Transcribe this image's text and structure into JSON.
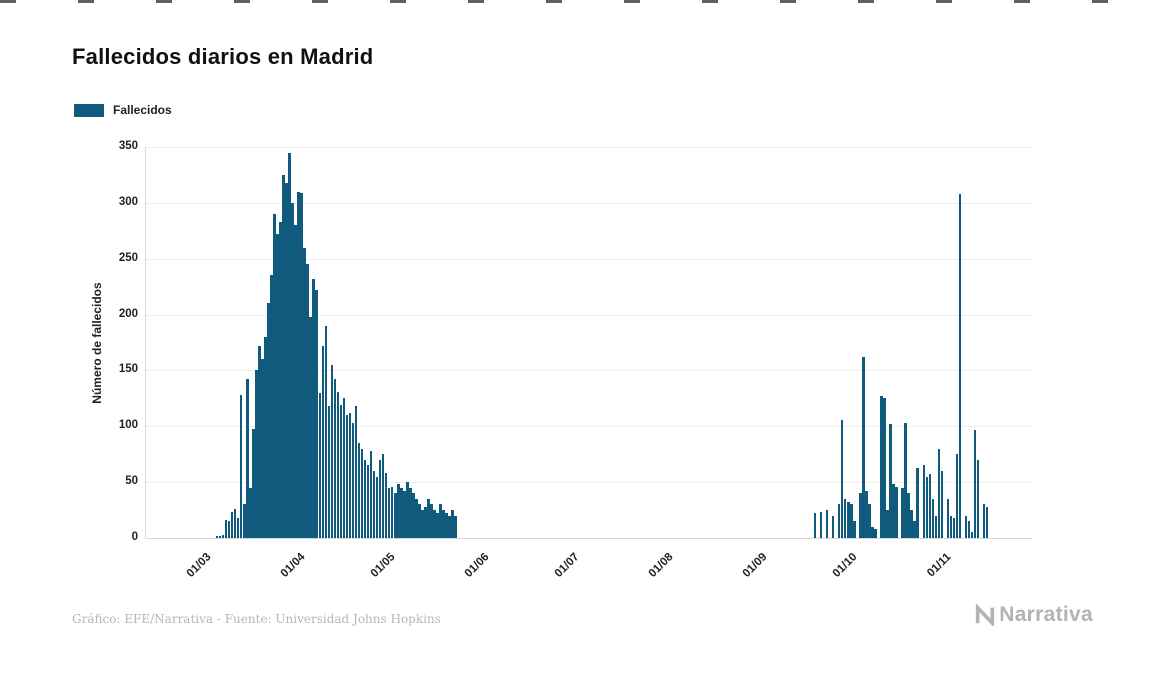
{
  "page": {
    "title": "Fallecidos diarios en Madrid",
    "legend_label": "Fallecidos",
    "ylabel": "Número de fallecidos",
    "footer_credit": "Gráfico: EFE/Narrativa - Fuente: Universidad Johns Hopkins",
    "brand": "Narrativa"
  },
  "colors": {
    "bar": "#0f5a7d",
    "axis": "#d9d9d9",
    "grid": "#efefef",
    "text": "#222222",
    "muted": "#b6b6b6"
  },
  "chart_data": {
    "type": "bar",
    "title": "Fallecidos diarios en Madrid",
    "xlabel": "",
    "ylabel": "Número de fallecidos",
    "ylim": [
      0,
      350
    ],
    "yticks": [
      0,
      50,
      100,
      150,
      200,
      250,
      300,
      350
    ],
    "xticks": [
      "01/03",
      "01/04",
      "01/05",
      "01/06",
      "01/07",
      "01/08",
      "01/09",
      "01/10",
      "01/11"
    ],
    "grid": true,
    "legend_position": "top-left",
    "series": [
      {
        "name": "Fallecidos",
        "points": [
          [
            "05/03",
            2
          ],
          [
            "06/03",
            2
          ],
          [
            "07/03",
            3
          ],
          [
            "08/03",
            16
          ],
          [
            "09/03",
            15
          ],
          [
            "10/03",
            23
          ],
          [
            "11/03",
            26
          ],
          [
            "12/03",
            18
          ],
          [
            "13/03",
            128
          ],
          [
            "14/03",
            30
          ],
          [
            "15/03",
            142
          ],
          [
            "16/03",
            45
          ],
          [
            "17/03",
            98
          ],
          [
            "18/03",
            150
          ],
          [
            "19/03",
            172
          ],
          [
            "20/03",
            160
          ],
          [
            "21/03",
            180
          ],
          [
            "22/03",
            210
          ],
          [
            "23/03",
            235
          ],
          [
            "24/03",
            290
          ],
          [
            "25/03",
            272
          ],
          [
            "26/03",
            283
          ],
          [
            "27/03",
            325
          ],
          [
            "28/03",
            318
          ],
          [
            "29/03",
            345
          ],
          [
            "30/03",
            300
          ],
          [
            "31/03",
            280
          ],
          [
            "01/04",
            310
          ],
          [
            "02/04",
            309
          ],
          [
            "03/04",
            260
          ],
          [
            "04/04",
            245
          ],
          [
            "05/04",
            198
          ],
          [
            "06/04",
            232
          ],
          [
            "07/04",
            222
          ],
          [
            "08/04",
            130
          ],
          [
            "09/04",
            172
          ],
          [
            "10/04",
            190
          ],
          [
            "11/04",
            118
          ],
          [
            "12/04",
            155
          ],
          [
            "13/04",
            142
          ],
          [
            "14/04",
            131
          ],
          [
            "15/04",
            119
          ],
          [
            "16/04",
            125
          ],
          [
            "17/04",
            110
          ],
          [
            "18/04",
            112
          ],
          [
            "19/04",
            103
          ],
          [
            "20/04",
            118
          ],
          [
            "21/04",
            85
          ],
          [
            "22/04",
            80
          ],
          [
            "23/04",
            70
          ],
          [
            "24/04",
            65
          ],
          [
            "25/04",
            78
          ],
          [
            "26/04",
            60
          ],
          [
            "27/04",
            55
          ],
          [
            "28/04",
            70
          ],
          [
            "29/04",
            75
          ],
          [
            "30/04",
            58
          ],
          [
            "01/05",
            45
          ],
          [
            "02/05",
            46
          ],
          [
            "03/05",
            40
          ],
          [
            "04/05",
            48
          ],
          [
            "05/05",
            45
          ],
          [
            "06/05",
            42
          ],
          [
            "07/05",
            50
          ],
          [
            "08/05",
            45
          ],
          [
            "09/05",
            40
          ],
          [
            "10/05",
            35
          ],
          [
            "11/05",
            30
          ],
          [
            "12/05",
            25
          ],
          [
            "13/05",
            28
          ],
          [
            "14/05",
            35
          ],
          [
            "15/05",
            30
          ],
          [
            "16/05",
            25
          ],
          [
            "17/05",
            22
          ],
          [
            "18/05",
            30
          ],
          [
            "19/05",
            25
          ],
          [
            "20/05",
            22
          ],
          [
            "21/05",
            20
          ],
          [
            "22/05",
            25
          ],
          [
            "23/05",
            20
          ],
          [
            "19/09",
            22
          ],
          [
            "21/09",
            23
          ],
          [
            "23/09",
            25
          ],
          [
            "25/09",
            20
          ],
          [
            "27/09",
            30
          ],
          [
            "28/09",
            106
          ],
          [
            "29/09",
            35
          ],
          [
            "30/09",
            32
          ],
          [
            "01/10",
            30
          ],
          [
            "02/10",
            15
          ],
          [
            "04/10",
            40
          ],
          [
            "05/10",
            162
          ],
          [
            "06/10",
            42
          ],
          [
            "07/10",
            30
          ],
          [
            "08/10",
            10
          ],
          [
            "09/10",
            8
          ],
          [
            "11/10",
            127
          ],
          [
            "12/10",
            125
          ],
          [
            "13/10",
            25
          ],
          [
            "14/10",
            102
          ],
          [
            "15/10",
            48
          ],
          [
            "16/10",
            46
          ],
          [
            "18/10",
            45
          ],
          [
            "19/10",
            103
          ],
          [
            "20/10",
            40
          ],
          [
            "21/10",
            25
          ],
          [
            "22/10",
            15
          ],
          [
            "23/10",
            63
          ],
          [
            "25/10",
            65
          ],
          [
            "26/10",
            55
          ],
          [
            "27/10",
            57
          ],
          [
            "28/10",
            35
          ],
          [
            "29/10",
            20
          ],
          [
            "30/10",
            80
          ],
          [
            "31/10",
            60
          ],
          [
            "02/11",
            35
          ],
          [
            "03/11",
            20
          ],
          [
            "04/11",
            18
          ],
          [
            "05/11",
            75
          ],
          [
            "06/11",
            308
          ],
          [
            "08/11",
            20
          ],
          [
            "09/11",
            15
          ],
          [
            "10/11",
            5
          ],
          [
            "11/11",
            97
          ],
          [
            "12/11",
            70
          ],
          [
            "14/11",
            30
          ],
          [
            "15/11",
            28
          ]
        ]
      }
    ]
  }
}
